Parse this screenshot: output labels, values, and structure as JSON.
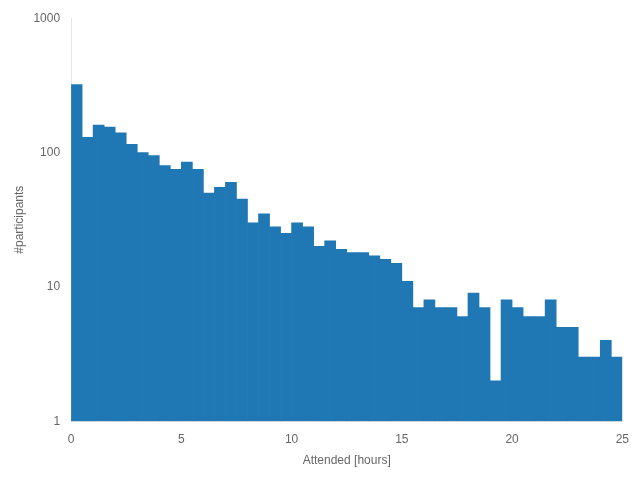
{
  "chart_data": {
    "type": "histogram",
    "bins": [
      0.0,
      0.5,
      1.0,
      1.5,
      2.0,
      2.5,
      3.0,
      3.5,
      4.0,
      4.5,
      5.0,
      5.5,
      6.0,
      6.5,
      7.0,
      7.5,
      8.0,
      8.5,
      9.0,
      9.5,
      10.0,
      10.5,
      11.0,
      11.5,
      12.0,
      12.5,
      13.0,
      13.5,
      14.0,
      14.5,
      15.0,
      15.5,
      16.0,
      16.5,
      17.0,
      17.5,
      18.0,
      18.5,
      19.0,
      19.5,
      20.0,
      20.5,
      21.0,
      21.5,
      22.0,
      22.5,
      23.0,
      23.5,
      24.0,
      24.5,
      25.0
    ],
    "values": [
      320,
      130,
      160,
      155,
      140,
      115,
      100,
      95,
      80,
      75,
      85,
      75,
      50,
      55,
      60,
      45,
      30,
      35,
      28,
      25,
      30,
      28,
      20,
      22,
      19,
      18,
      18,
      17,
      16,
      15,
      11,
      7,
      8,
      7,
      7,
      6,
      9,
      7,
      2,
      8,
      7,
      6,
      6,
      8,
      5,
      5,
      3,
      3,
      4,
      3
    ],
    "color": "#1f77b4",
    "xlabel": "Attended [hours]",
    "ylabel": "#participants",
    "xlim": [
      0,
      25
    ],
    "xticks": [
      0,
      5,
      10,
      15,
      20,
      25
    ],
    "ylim": [
      1,
      1000
    ],
    "yticks": [
      1,
      10,
      100,
      1000
    ],
    "log": "y",
    "grid": false
  }
}
